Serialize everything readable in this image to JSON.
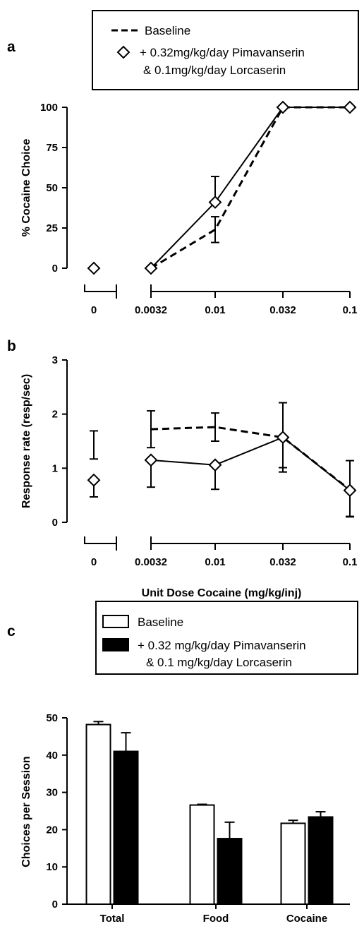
{
  "panels": {
    "a": "a",
    "b": "b",
    "c": "c"
  },
  "shared_x": {
    "ticks": [
      "0",
      "0.0032",
      "0.01",
      "0.032",
      "0.1"
    ],
    "label": "Unit Dose Cocaine (mg/kg/inj)"
  },
  "legend_ab": {
    "baseline": "Baseline",
    "treatment_line1": "+ 0.32mg/kg/day Pimavanserin",
    "treatment_line2": "& 0.1mg/kg/day Lorcaserin"
  },
  "legend_c": {
    "baseline": "Baseline",
    "treatment_line1": "+ 0.32 mg/kg/day Pimavanserin",
    "treatment_line2": "& 0.1 mg/kg/day Lorcaserin"
  },
  "colors": {
    "baseline_bar": "#ffffff",
    "treatment_bar": "#000000",
    "stroke": "#000000"
  },
  "chart_data": [
    {
      "id": "a",
      "type": "line",
      "ylabel": "% Cocaine Choice",
      "xlabel": "",
      "categories": [
        "0",
        "0.0032",
        "0.01",
        "0.032",
        "0.1"
      ],
      "ylim": [
        0,
        100
      ],
      "yticks": [
        0,
        25,
        50,
        75,
        100
      ],
      "series": [
        {
          "name": "Baseline",
          "style": "dashed",
          "values": [
            null,
            0,
            24,
            100,
            100
          ],
          "err_upper": [
            null,
            null,
            8,
            null,
            null
          ],
          "err_lower": [
            null,
            null,
            8,
            null,
            null
          ]
        },
        {
          "name": "+ 0.32mg/kg/day Pimavanserin & 0.1mg/kg/day Lorcaserin",
          "style": "solid-diamond",
          "values": [
            0,
            0,
            41,
            100,
            100
          ],
          "err_upper": [
            null,
            null,
            16,
            null,
            null
          ],
          "err_lower": [
            null,
            null,
            null,
            null,
            null
          ]
        }
      ]
    },
    {
      "id": "b",
      "type": "line",
      "ylabel": "Response rate (resp/sec)",
      "xlabel": "Unit Dose Cocaine (mg/kg/inj)",
      "categories": [
        "0",
        "0.0032",
        "0.01",
        "0.032",
        "0.1"
      ],
      "ylim": [
        0,
        3
      ],
      "yticks": [
        0,
        1,
        2,
        3
      ],
      "series": [
        {
          "name": "Baseline",
          "style": "dashed",
          "values": [
            1.43,
            1.72,
            1.76,
            1.57,
            0.6
          ],
          "err_upper": [
            0.26,
            0.34,
            0.26,
            0.64,
            0.54
          ],
          "err_lower": [
            0.26,
            0.34,
            0.26,
            0.64,
            0.5
          ],
          "connect_from_index": 1
        },
        {
          "name": "+ 0.32mg/kg/day Pimavanserin & 0.1mg/kg/day Lorcaserin",
          "style": "solid-diamond",
          "values": [
            0.78,
            1.15,
            1.06,
            1.57,
            0.59
          ],
          "err_upper": [
            null,
            null,
            null,
            null,
            null
          ],
          "err_lower": [
            0.31,
            0.5,
            0.45,
            0.56,
            0.48
          ],
          "connect_from_index": 1
        }
      ]
    },
    {
      "id": "c",
      "type": "bar",
      "ylabel": "Choices per Session",
      "xlabel": "",
      "categories": [
        "Total",
        "Food",
        "Cocaine"
      ],
      "ylim": [
        0,
        50
      ],
      "yticks": [
        0,
        10,
        20,
        30,
        40,
        50
      ],
      "series": [
        {
          "name": "Baseline",
          "values": [
            48.2,
            26.6,
            21.7
          ],
          "err_upper": [
            0.8,
            0.2,
            0.8
          ]
        },
        {
          "name": "+ 0.32 mg/kg/day Pimavanserin & 0.1 mg/kg/day Lorcaserin",
          "values": [
            41.0,
            17.6,
            23.4
          ],
          "err_upper": [
            5.0,
            4.4,
            1.4
          ]
        }
      ]
    }
  ]
}
